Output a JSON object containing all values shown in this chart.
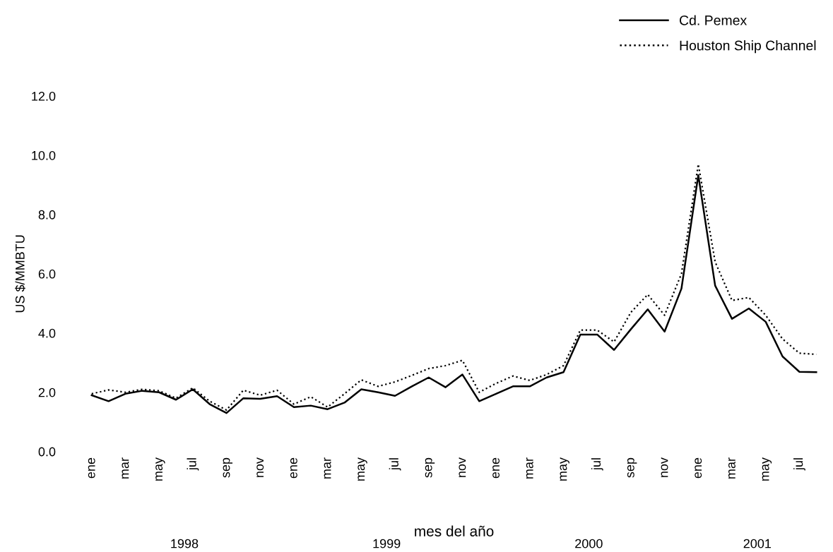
{
  "chart_data": {
    "type": "line",
    "xlabel": "mes del año",
    "ylabel": "US $/MMBTU",
    "categories": [
      "ene",
      null,
      "mar",
      null,
      "may",
      null,
      "jul",
      null,
      "sep",
      null,
      "nov",
      null,
      "ene",
      null,
      "mar",
      null,
      "may",
      null,
      "jul",
      null,
      "sep",
      null,
      "nov",
      null,
      "ene",
      null,
      "mar",
      null,
      "may",
      null,
      "jul",
      null,
      "sep",
      null,
      "nov",
      null,
      "ene",
      null,
      "mar",
      null,
      "may",
      null,
      "jul",
      null
    ],
    "series": [
      {
        "name": "Cd. Pemex",
        "color": "#000000",
        "line_style": "solid",
        "values": [
          1.9,
          1.7,
          1.95,
          2.05,
          2.0,
          1.75,
          2.1,
          1.6,
          1.3,
          1.8,
          1.78,
          1.87,
          1.5,
          1.55,
          1.43,
          1.65,
          2.1,
          2.0,
          1.88,
          2.2,
          2.5,
          2.17,
          2.6,
          1.7,
          1.95,
          2.2,
          2.2,
          2.5,
          2.68,
          3.95,
          3.95,
          3.43,
          4.13,
          4.8,
          4.05,
          5.5,
          9.33,
          5.6,
          4.48,
          4.83,
          4.38,
          3.21,
          2.69,
          2.68
        ]
      },
      {
        "name": "Houston Ship Channel",
        "color": "#000000",
        "line_style": "dotted",
        "values": [
          1.95,
          2.08,
          2.0,
          2.1,
          2.05,
          1.8,
          2.15,
          1.7,
          1.4,
          2.07,
          1.9,
          2.07,
          1.6,
          1.85,
          1.5,
          1.95,
          2.42,
          2.2,
          2.35,
          2.57,
          2.8,
          2.9,
          3.08,
          2.0,
          2.3,
          2.55,
          2.4,
          2.6,
          2.9,
          4.1,
          4.1,
          3.7,
          4.7,
          5.3,
          4.6,
          6.0,
          9.7,
          6.4,
          5.1,
          5.2,
          4.6,
          3.8,
          3.32,
          3.28
        ]
      }
    ],
    "annotations": [
      "1998",
      "1999",
      "2000",
      "2001"
    ],
    "ylim": [
      0,
      12
    ],
    "yticks": [
      {
        "value": 0,
        "label": "0.0"
      },
      {
        "value": 2,
        "label": "2.0"
      },
      {
        "value": 4,
        "label": "4.0"
      },
      {
        "value": 6,
        "label": "6.0"
      },
      {
        "value": 8,
        "label": "8.0"
      },
      {
        "value": 10,
        "label": "10.0"
      },
      {
        "value": 12,
        "label": "12.0"
      }
    ],
    "grid": false,
    "legend": "top right",
    "marker": "none"
  }
}
